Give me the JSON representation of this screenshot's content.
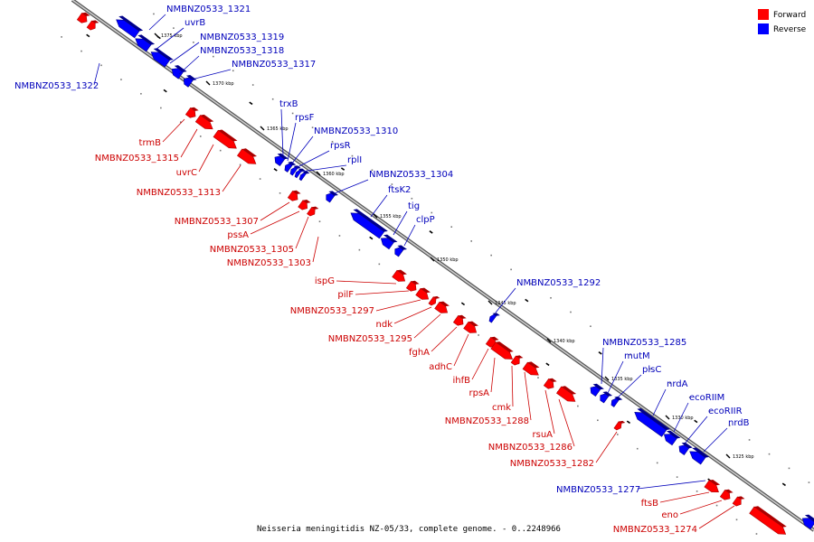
{
  "caption": "Neisseria meningitidis NZ-05/33, complete genome. - 0..2248966",
  "legend": [
    {
      "label": "Forward",
      "color": "#ff0000"
    },
    {
      "label": "Reverse",
      "color": "#0000ff"
    }
  ],
  "colors": {
    "forward": "#ff0000",
    "reverse": "#0000ff",
    "forward_label": "#cc0000",
    "reverse_label": "#0000bb",
    "backbone": "#888888"
  },
  "ticks": [
    {
      "kbp": 1375,
      "label": "1375 kbp"
    },
    {
      "kbp": 1370,
      "label": "1370 kbp"
    },
    {
      "kbp": 1365,
      "label": "1365 kbp"
    },
    {
      "kbp": 1360,
      "label": "1360 kbp"
    },
    {
      "kbp": 1355,
      "label": "1355 kbp"
    },
    {
      "kbp": 1350,
      "label": "1350 kbp"
    },
    {
      "kbp": 1345,
      "label": "1345 kbp"
    },
    {
      "kbp": 1340,
      "label": "1340 kbp"
    },
    {
      "kbp": 1335,
      "label": "1335 kbp"
    },
    {
      "kbp": 1330,
      "label": "1330 kbp"
    },
    {
      "kbp": 1325,
      "label": "1325 kbp"
    }
  ],
  "reverse_genes": [
    {
      "name": "NMBNZ0533_1321"
    },
    {
      "name": "uvrB"
    },
    {
      "name": "NMBNZ0533_1319"
    },
    {
      "name": "NMBNZ0533_1318"
    },
    {
      "name": "NMBNZ0533_1317"
    },
    {
      "name": "NMBNZ0533_1322"
    },
    {
      "name": "trxB"
    },
    {
      "name": "rpsF"
    },
    {
      "name": "NMBNZ0533_1310"
    },
    {
      "name": "rpsR"
    },
    {
      "name": "rplI"
    },
    {
      "name": "NMBNZ0533_1304"
    },
    {
      "name": "ftsK2"
    },
    {
      "name": "tig"
    },
    {
      "name": "clpP"
    },
    {
      "name": "NMBNZ0533_1292"
    },
    {
      "name": "NMBNZ0533_1285"
    },
    {
      "name": "mutM"
    },
    {
      "name": "plsC"
    },
    {
      "name": "nrdA"
    },
    {
      "name": "ecoRIIM"
    },
    {
      "name": "ecoRIIR"
    },
    {
      "name": "nrdB"
    },
    {
      "name": "NMBNZ0533_1277"
    }
  ],
  "forward_genes": [
    {
      "name": "trmB"
    },
    {
      "name": "NMBNZ0533_1315"
    },
    {
      "name": "uvrC"
    },
    {
      "name": "NMBNZ0533_1313"
    },
    {
      "name": "NMBNZ0533_1307"
    },
    {
      "name": "pssA"
    },
    {
      "name": "NMBNZ0533_1305"
    },
    {
      "name": "NMBNZ0533_1303"
    },
    {
      "name": "ispG"
    },
    {
      "name": "pilF"
    },
    {
      "name": "NMBNZ0533_1297"
    },
    {
      "name": "ndk"
    },
    {
      "name": "NMBNZ0533_1295"
    },
    {
      "name": "fghA"
    },
    {
      "name": "adhC"
    },
    {
      "name": "ihfB"
    },
    {
      "name": "rpsA"
    },
    {
      "name": "cmk"
    },
    {
      "name": "NMBNZ0533_1288"
    },
    {
      "name": "rsuA"
    },
    {
      "name": "NMBNZ0533_1286"
    },
    {
      "name": "NMBNZ0533_1282"
    },
    {
      "name": "ftsB"
    },
    {
      "name": "eno"
    },
    {
      "name": "NMBNZ0533_1274"
    }
  ]
}
